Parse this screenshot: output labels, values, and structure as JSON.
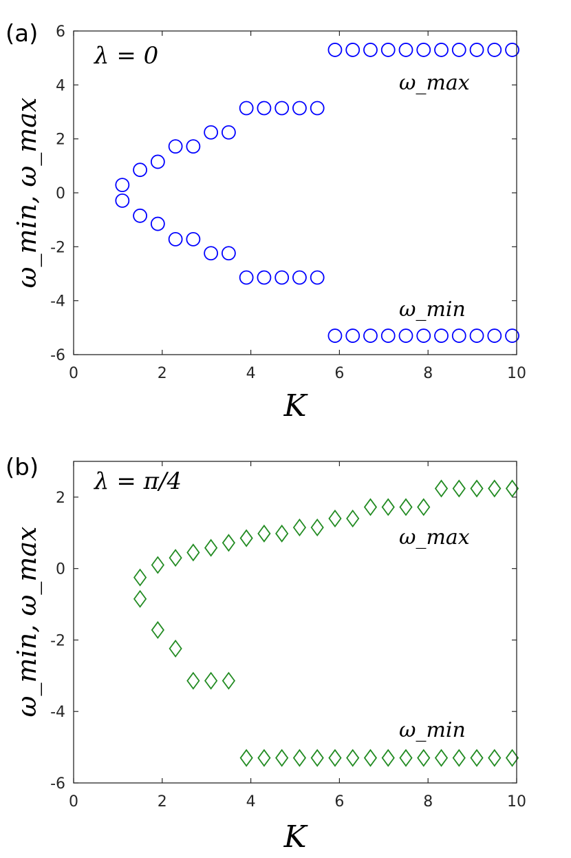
{
  "chart_data": [
    {
      "type": "scatter",
      "panel_label": "(a)",
      "annotation": "λ = 0",
      "xlabel": "K",
      "ylabel": "ω_min, ω_max",
      "xlim": [
        0,
        10
      ],
      "ylim": [
        -6,
        6
      ],
      "xticks": [
        0,
        2,
        4,
        6,
        8,
        10
      ],
      "yticks": [
        -6,
        -4,
        -2,
        0,
        2,
        4,
        6
      ],
      "marker": "circle",
      "color": "#0000ff",
      "series": [
        {
          "name": "ω_max",
          "label_text": "ω_max",
          "x": [
            1.1,
            1.5,
            1.9,
            2.3,
            2.7,
            3.1,
            3.5,
            3.9,
            4.3,
            4.7,
            5.1,
            5.5,
            5.9,
            6.3,
            6.7,
            7.1,
            7.5,
            7.9,
            8.3,
            8.7,
            9.1,
            9.5,
            9.9
          ],
          "y": [
            0.29,
            0.85,
            1.15,
            1.72,
            1.72,
            2.24,
            2.24,
            3.14,
            3.14,
            3.14,
            3.14,
            3.14,
            5.3,
            5.3,
            5.3,
            5.3,
            5.3,
            5.3,
            5.3,
            5.3,
            5.3,
            5.3,
            5.3
          ]
        },
        {
          "name": "ω_min",
          "label_text": "ω_min",
          "x": [
            1.1,
            1.5,
            1.9,
            2.3,
            2.7,
            3.1,
            3.5,
            3.9,
            4.3,
            4.7,
            5.1,
            5.5,
            5.9,
            6.3,
            6.7,
            7.1,
            7.5,
            7.9,
            8.3,
            8.7,
            9.1,
            9.5,
            9.9
          ],
          "y": [
            -0.29,
            -0.85,
            -1.15,
            -1.72,
            -1.72,
            -2.24,
            -2.24,
            -3.14,
            -3.14,
            -3.14,
            -3.14,
            -3.14,
            -5.3,
            -5.3,
            -5.3,
            -5.3,
            -5.3,
            -5.3,
            -5.3,
            -5.3,
            -5.3,
            -5.3,
            -5.3
          ]
        }
      ]
    },
    {
      "type": "scatter",
      "panel_label": "(b)",
      "annotation": "λ = π/4",
      "xlabel": "K",
      "ylabel": "ω_min, ω_max",
      "xlim": [
        0,
        10
      ],
      "ylim": [
        -6,
        3
      ],
      "xticks": [
        0,
        2,
        4,
        6,
        8,
        10
      ],
      "yticks": [
        -6,
        -4,
        -2,
        0,
        2
      ],
      "marker": "diamond",
      "color": "#228b22",
      "series": [
        {
          "name": "ω_max",
          "label_text": "ω_max",
          "x": [
            1.5,
            1.9,
            2.3,
            2.7,
            3.1,
            3.5,
            3.9,
            4.3,
            4.7,
            5.1,
            5.5,
            5.9,
            6.3,
            6.7,
            7.1,
            7.5,
            7.9,
            8.3,
            8.7,
            9.1,
            9.5,
            9.9
          ],
          "y": [
            -0.25,
            0.1,
            0.3,
            0.45,
            0.58,
            0.72,
            0.85,
            0.98,
            0.98,
            1.15,
            1.15,
            1.4,
            1.4,
            1.72,
            1.72,
            1.72,
            1.72,
            2.24,
            2.24,
            2.24,
            2.24,
            2.24
          ]
        },
        {
          "name": "ω_min",
          "label_text": "ω_min",
          "x": [
            1.5,
            1.9,
            2.3,
            2.7,
            3.1,
            3.5,
            3.9,
            4.3,
            4.7,
            5.1,
            5.5,
            5.9,
            6.3,
            6.7,
            7.1,
            7.5,
            7.9,
            8.3,
            8.7,
            9.1,
            9.5,
            9.9
          ],
          "y": [
            -0.85,
            -1.72,
            -2.24,
            -3.14,
            -3.14,
            -3.14,
            -5.3,
            -5.3,
            -5.3,
            -5.3,
            -5.3,
            -5.3,
            -5.3,
            -5.3,
            -5.3,
            -5.3,
            -5.3,
            -5.3,
            -5.3,
            -5.3,
            -5.3,
            -5.3
          ]
        }
      ]
    }
  ]
}
